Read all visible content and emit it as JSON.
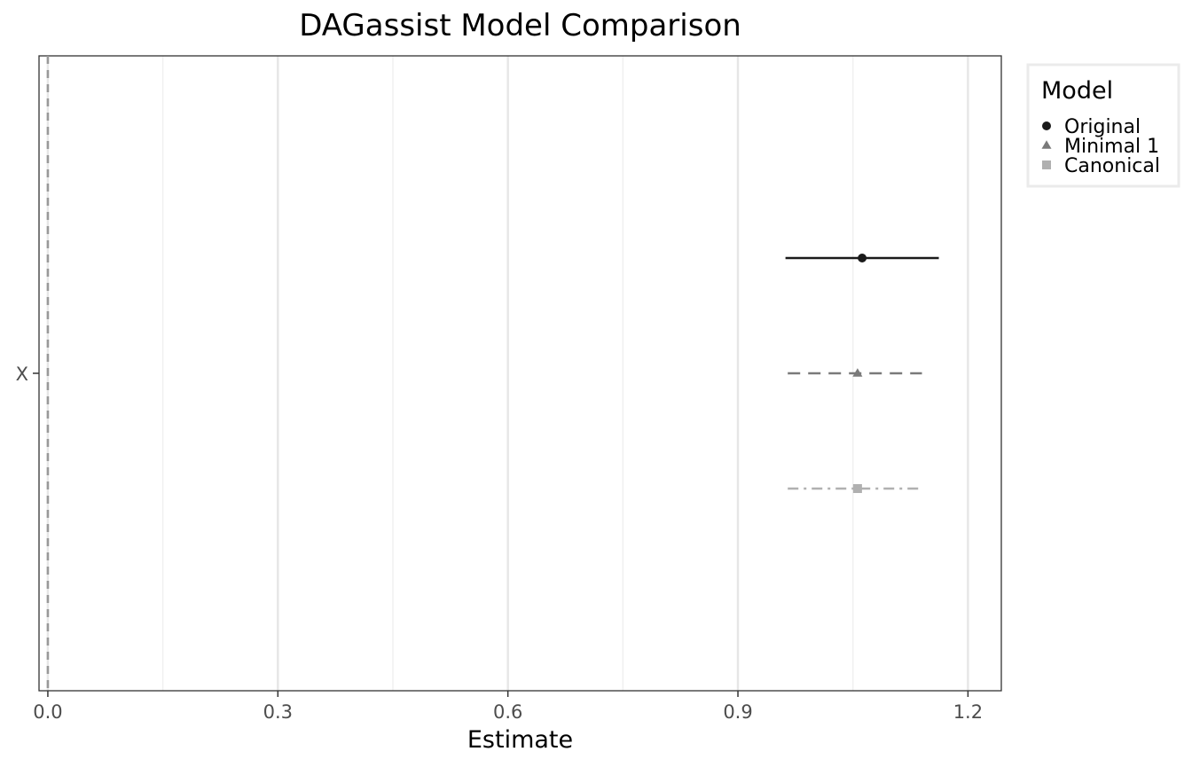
{
  "chart_data": {
    "type": "forest",
    "title": "DAGassist Model Comparison",
    "xlabel": "Estimate",
    "ylabel": "",
    "xlim": [
      -0.0115,
      1.2435
    ],
    "xticks": [
      0.0,
      0.3,
      0.6,
      0.9,
      1.2
    ],
    "xtick_labels": [
      "0.0",
      "0.3",
      "0.6",
      "0.9",
      "1.2"
    ],
    "minor_gridlines": [
      0.15,
      0.45,
      0.75,
      1.05
    ],
    "categories": [
      "X"
    ],
    "reference_line": 0,
    "grid": true,
    "legend": {
      "title": "Model",
      "placement": "right"
    },
    "series": [
      {
        "name": "Original",
        "estimate": 1.062,
        "lower": 0.962,
        "upper": 1.162,
        "color": "#1a1a1a",
        "shape": "circle",
        "linetype": "solid"
      },
      {
        "name": "Minimal 1",
        "estimate": 1.056,
        "lower": 0.965,
        "upper": 1.14,
        "color": "#7a7a7a",
        "shape": "triangle",
        "linetype": "dashed"
      },
      {
        "name": "Canonical",
        "estimate": 1.056,
        "lower": 0.965,
        "upper": 1.14,
        "color": "#b0b0b0",
        "shape": "square",
        "linetype": "dotdash"
      }
    ]
  }
}
